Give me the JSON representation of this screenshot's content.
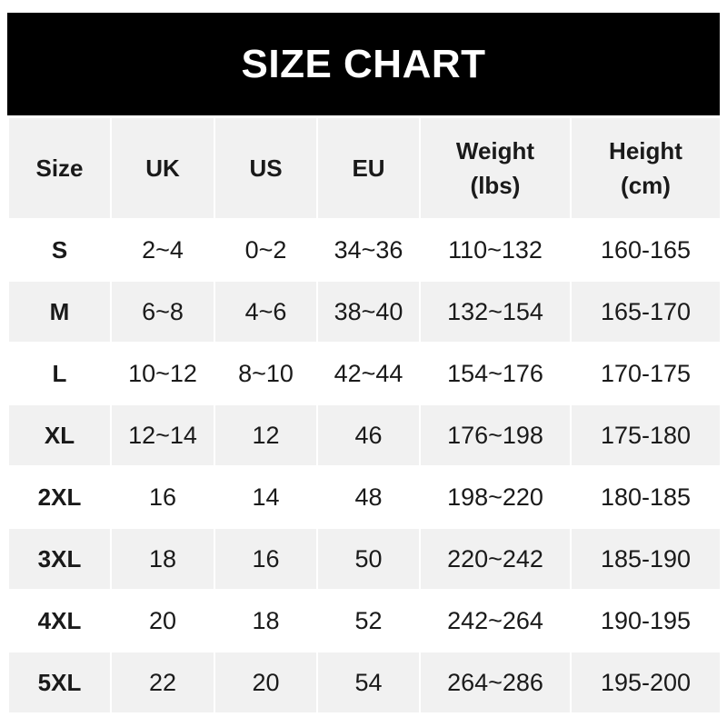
{
  "title": "SIZE CHART",
  "headers": [
    {
      "line1": "Size",
      "line2": ""
    },
    {
      "line1": "UK",
      "line2": ""
    },
    {
      "line1": "US",
      "line2": ""
    },
    {
      "line1": "EU",
      "line2": ""
    },
    {
      "line1": "Weight",
      "line2": "(lbs)"
    },
    {
      "line1": "Height",
      "line2": "(cm)"
    }
  ],
  "rows": [
    [
      "S",
      "2~4",
      "0~2",
      "34~36",
      "110~132",
      "160-165"
    ],
    [
      "M",
      "6~8",
      "4~6",
      "38~40",
      "132~154",
      "165-170"
    ],
    [
      "L",
      "10~12",
      "8~10",
      "42~44",
      "154~176",
      "170-175"
    ],
    [
      "XL",
      "12~14",
      "12",
      "46",
      "176~198",
      "175-180"
    ],
    [
      "2XL",
      "16",
      "14",
      "48",
      "198~220",
      "180-185"
    ],
    [
      "3XL",
      "18",
      "16",
      "50",
      "220~242",
      "185-190"
    ],
    [
      "4XL",
      "20",
      "18",
      "52",
      "242~264",
      "190-195"
    ],
    [
      "5XL",
      "22",
      "20",
      "54",
      "264~286",
      "195-200"
    ]
  ],
  "colors": {
    "banner": "#000000",
    "stripe": "#f1f1f1",
    "text": "#1a1a1a"
  }
}
